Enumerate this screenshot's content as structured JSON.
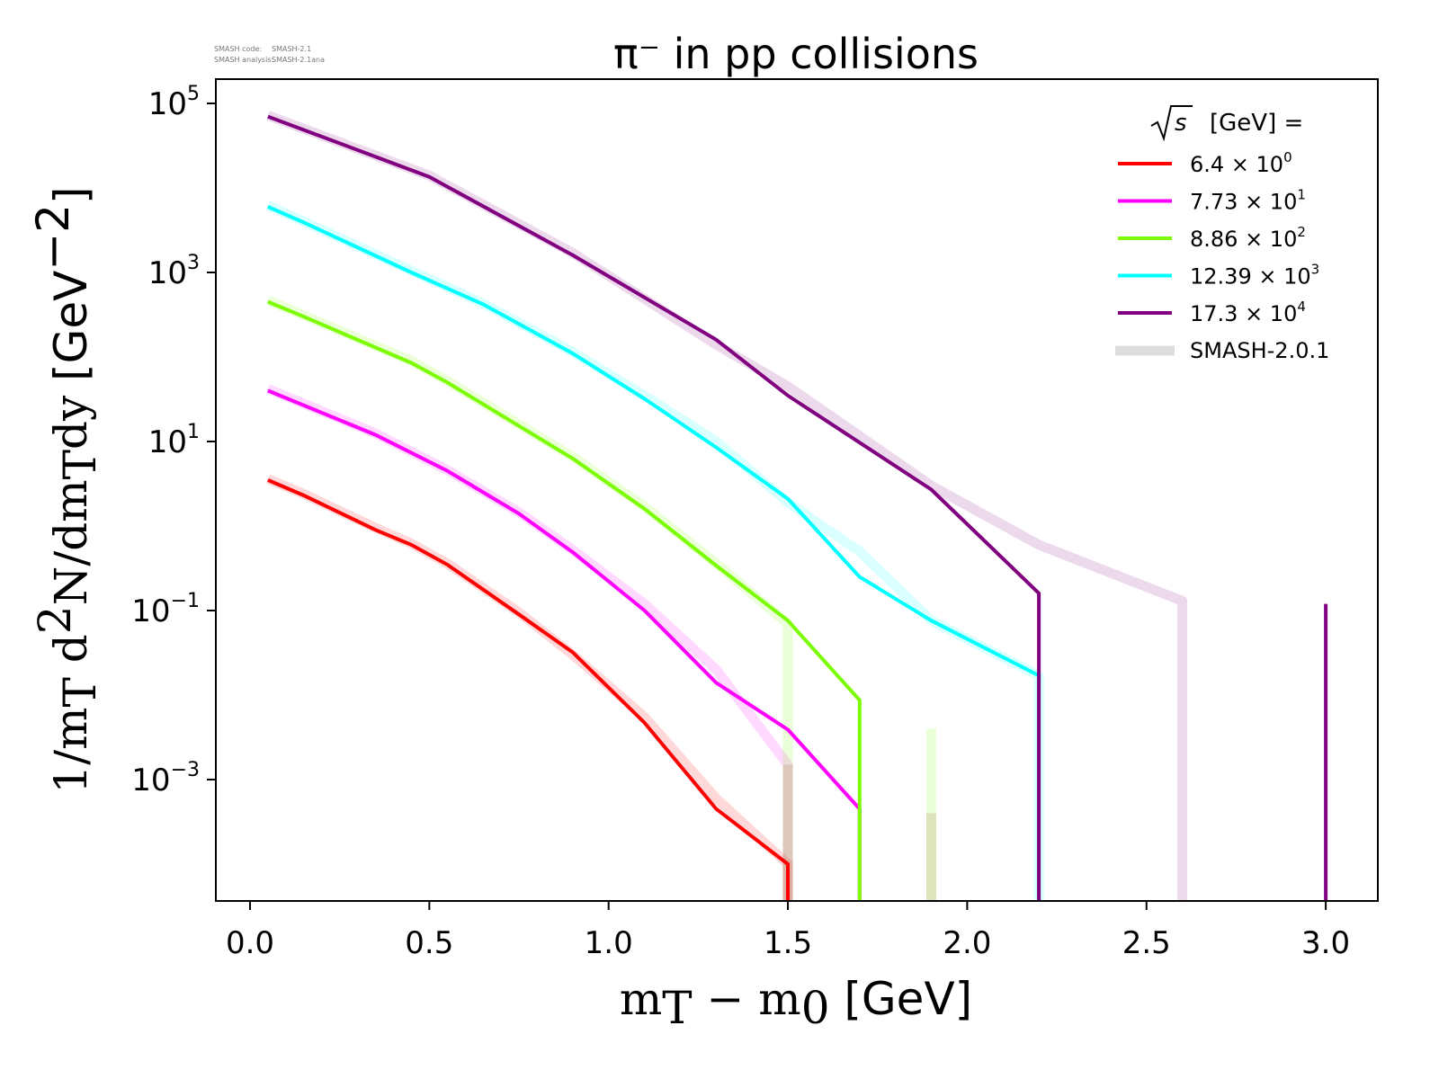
{
  "info": {
    "line1_label": "SMASH code:",
    "line1_value": "SMASH-2.1",
    "line2_label": "SMASH analysis:",
    "line2_value": "SMASH-2.1ana"
  },
  "chart_data": {
    "type": "line",
    "title": "π⁻ in pp collisions",
    "xlabel": "m_T − m_0 [GeV]",
    "ylabel": "1/m_T d²N/dm_T dy [GeV⁻²]",
    "xscale": "linear",
    "yscale": "log",
    "xlim": [
      -0.1,
      3.15
    ],
    "ylim": [
      3.6e-05,
      200000.0
    ],
    "grid": false,
    "x_ticks": [
      "0.0",
      "0.5",
      "1.0",
      "1.5",
      "2.0",
      "2.5",
      "3.0"
    ],
    "x_tick_values": [
      0.0,
      0.5,
      1.0,
      1.5,
      2.0,
      2.5,
      3.0
    ],
    "y_ticks": [
      {
        "value": 100000.0,
        "base": "10",
        "exp": "5"
      },
      {
        "value": 1000.0,
        "base": "10",
        "exp": "3"
      },
      {
        "value": 10.0,
        "base": "10",
        "exp": "1"
      },
      {
        "value": 0.1,
        "base": "10",
        "exp": "−1"
      },
      {
        "value": 0.001,
        "base": "10",
        "exp": "−3"
      }
    ],
    "legend": {
      "position": "top-right",
      "title_prefix": "√s",
      "title_suffix": "[GeV] ="
    },
    "series": [
      {
        "name": "6.4 × 10⁰",
        "mantissa": "6.4",
        "exp": "0",
        "color": "#ff0000",
        "x": [
          0.05,
          0.15,
          0.35,
          0.45,
          0.55,
          0.75,
          0.9,
          1.1,
          1.3,
          1.5,
          1.5
        ],
        "y": [
          3.5,
          2.3,
          0.9,
          0.6,
          0.35,
          0.09,
          0.032,
          0.0047,
          0.00045,
          0.0001,
          1e-06
        ]
      },
      {
        "name": "7.73 × 10¹",
        "mantissa": "7.73",
        "exp": "1",
        "color": "#ff00ff",
        "x": [
          0.05,
          0.35,
          0.55,
          0.75,
          0.9,
          1.1,
          1.3,
          1.5,
          1.7,
          1.7
        ],
        "y": [
          40,
          12,
          4.5,
          1.4,
          0.49,
          0.1,
          0.014,
          0.0039,
          0.00045,
          1e-06
        ]
      },
      {
        "name": "8.86 × 10²",
        "mantissa": "8.86",
        "exp": "2",
        "color": "#7cfc00",
        "x": [
          0.05,
          0.15,
          0.45,
          0.55,
          0.9,
          1.1,
          1.3,
          1.5,
          1.7,
          1.7
        ],
        "y": [
          450,
          300,
          85,
          50,
          6.3,
          1.6,
          0.34,
          0.076,
          0.0087,
          1e-06
        ]
      },
      {
        "name": "12.39 × 10³",
        "mantissa": "12.39",
        "exp": "3",
        "color": "#00ffff",
        "x": [
          0.05,
          0.15,
          0.45,
          0.65,
          0.9,
          1.1,
          1.3,
          1.5,
          1.7,
          1.9,
          2.2,
          2.2
        ],
        "y": [
          6000,
          3900,
          1000,
          420,
          110,
          32,
          8.5,
          2.1,
          0.25,
          0.076,
          0.017,
          1e-06
        ]
      },
      {
        "name": "17.3 × 10⁴",
        "mantissa": "17.3",
        "exp": "4",
        "color": "#800080",
        "x": [
          0.05,
          0.5,
          0.9,
          1.3,
          1.5,
          1.9,
          2.2,
          2.2
        ],
        "y": [
          70000,
          13500,
          1600,
          160,
          35,
          2.7,
          0.16,
          1e-06
        ],
        "extra_segment": {
          "x": [
            3.0,
            3.0
          ],
          "y": [
            1e-06,
            0.12
          ]
        }
      }
    ],
    "reference": {
      "name": "SMASH-2.0.1",
      "legend_color": "#dddddd",
      "series": [
        {
          "color": "#ff0000",
          "x": [
            0.05,
            0.15,
            0.35,
            0.45,
            0.55,
            0.75,
            0.9,
            1.1,
            1.3,
            1.5,
            1.5
          ],
          "y": [
            3.6,
            2.4,
            0.95,
            0.62,
            0.36,
            0.095,
            0.03,
            0.0055,
            0.0006,
            0.0001,
            1e-06
          ]
        },
        {
          "color": "#ff00ff",
          "x": [
            0.05,
            0.35,
            0.55,
            0.75,
            0.9,
            1.1,
            1.3,
            1.5,
            1.5
          ],
          "y": [
            42,
            12.5,
            4.6,
            1.45,
            0.52,
            0.12,
            0.02,
            0.0015,
            1e-06
          ]
        },
        {
          "color": "#7cfc00",
          "x": [
            0.05,
            0.15,
            0.45,
            0.55,
            0.9,
            1.1,
            1.3,
            1.5,
            1.5
          ],
          "y": [
            470,
            310,
            90,
            52,
            6.6,
            1.7,
            0.36,
            0.07,
            1e-06
          ]
        },
        {
          "color": "#00ffff",
          "x": [
            0.05,
            0.15,
            0.45,
            0.65,
            0.9,
            1.1,
            1.3,
            1.5,
            1.7,
            1.9,
            2.2,
            2.2
          ],
          "y": [
            6200,
            4000,
            1050,
            430,
            115,
            35,
            10,
            1.9,
            0.5,
            0.076,
            0.017,
            1e-06
          ]
        },
        {
          "color": "#800080",
          "x": [
            0.05,
            0.5,
            0.9,
            1.3,
            1.5,
            1.9,
            2.2,
            2.6,
            2.6
          ],
          "y": [
            72000,
            14000,
            1700,
            140,
            45,
            3.0,
            0.6,
            0.13,
            1e-06
          ]
        },
        {
          "color": "#7cfc00",
          "x": [
            1.9,
            1.9
          ],
          "y": [
            1e-06,
            0.004
          ]
        },
        {
          "color": "#8b4513",
          "x": [
            1.9,
            1.9
          ],
          "y": [
            1e-06,
            0.0004
          ]
        },
        {
          "color": "#8b4513",
          "x": [
            1.5,
            1.5
          ],
          "y": [
            1e-06,
            0.0015
          ]
        }
      ]
    }
  }
}
